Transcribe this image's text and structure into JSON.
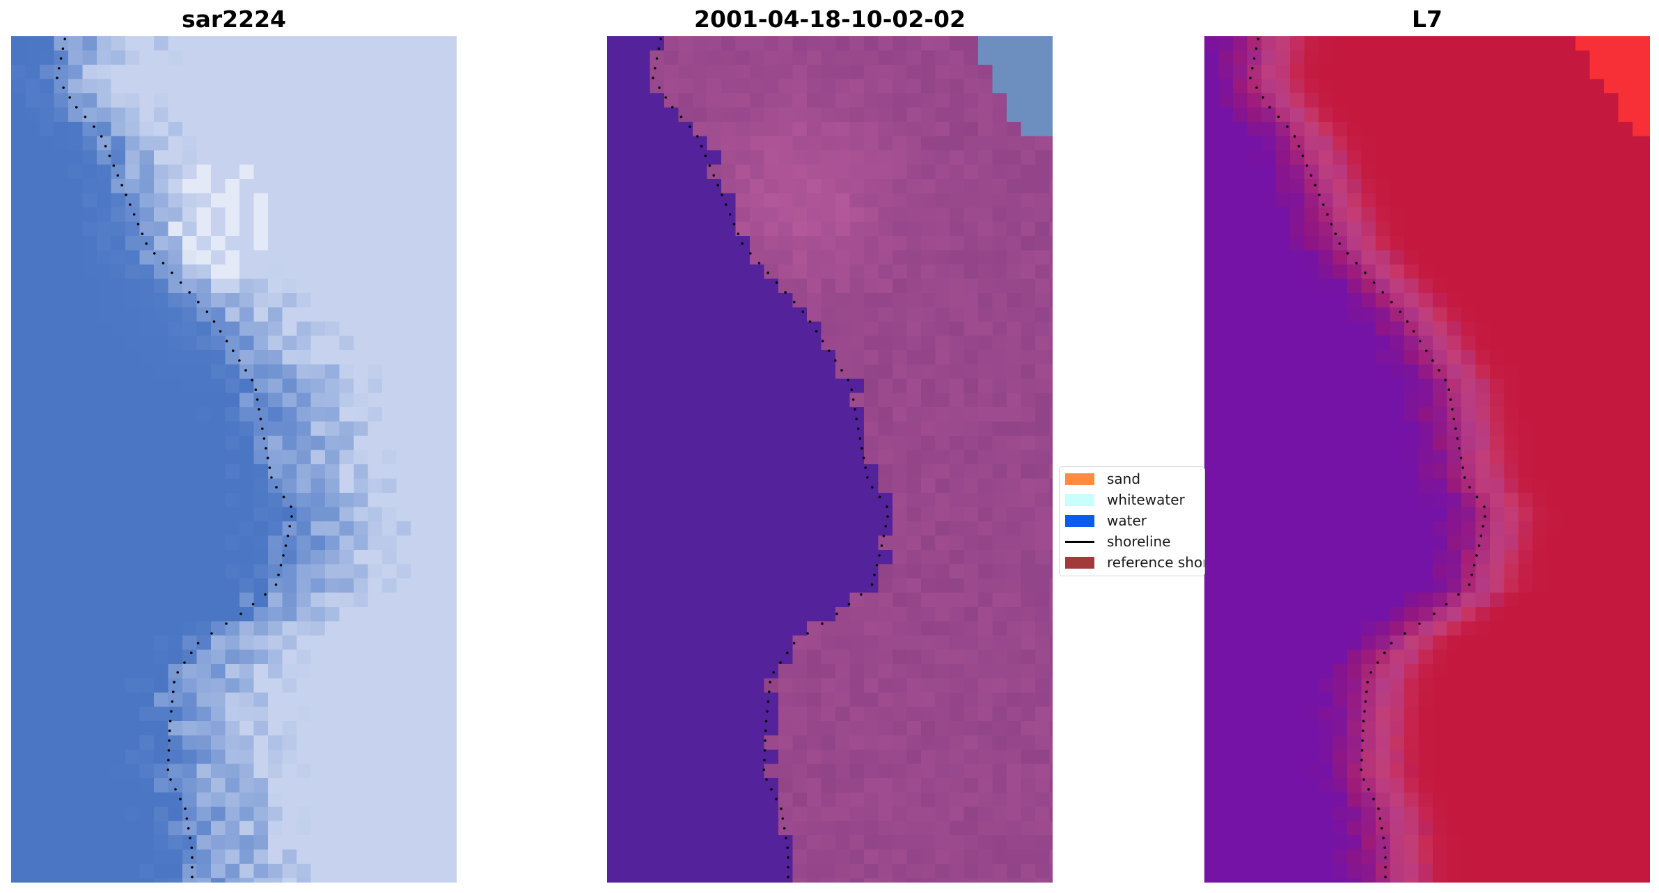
{
  "panels": [
    {
      "title": "sar2224"
    },
    {
      "title": "2001-04-18-10-02-02"
    },
    {
      "title": "L7"
    }
  ],
  "legend": {
    "items": [
      {
        "label": "sand",
        "color": "#ff8c42",
        "kind": "patch"
      },
      {
        "label": "whitewater",
        "color": "#c8fffd",
        "kind": "patch"
      },
      {
        "label": "water",
        "color": "#0a5cf0",
        "kind": "patch"
      },
      {
        "label": "shoreline",
        "color": "#000000",
        "kind": "line"
      },
      {
        "label": "reference shoreline",
        "color": "#a23a3a",
        "kind": "patch"
      }
    ]
  },
  "colors": {
    "rgb_water": "#4a76c4",
    "rgb_foam": "#c7d3ee",
    "classified_water": "#54229a",
    "classified_land": "#8a3f85",
    "classified_corner": "#6d8fbf",
    "index_left": "#7413a6",
    "index_right": "#c4183f",
    "index_corner": "#ff3434"
  }
}
